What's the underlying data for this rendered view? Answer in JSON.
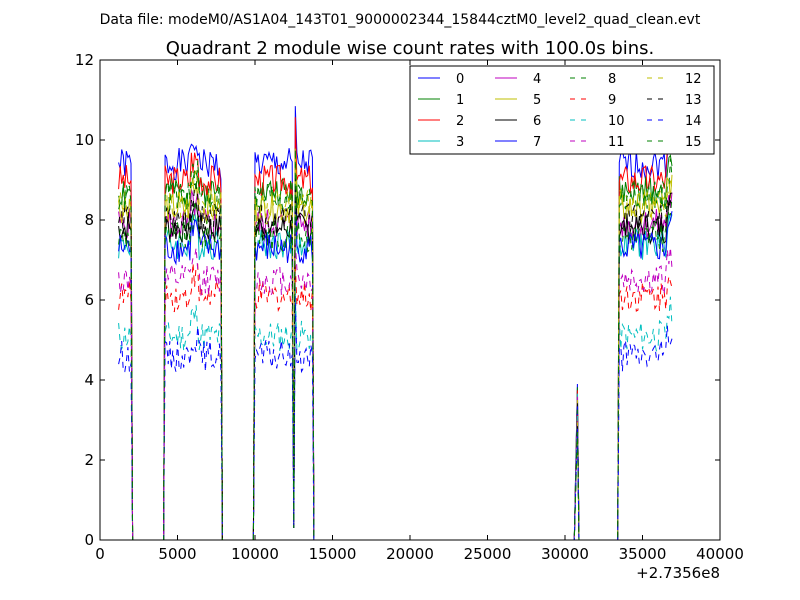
{
  "header": {
    "datafile": "Data file: modeM0/AS1A04_143T01_9000002344_15844cztM0_level2_quad_clean.evt"
  },
  "chart_data": {
    "type": "line",
    "title": "Quadrant 2 module wise count rates with 100.0s bins.",
    "xlabel": "",
    "ylabel": "",
    "x_offset_label": "+2.7356e8",
    "xlim": [
      0,
      40000
    ],
    "ylim": [
      0,
      12
    ],
    "x_ticks": [
      0,
      5000,
      10000,
      15000,
      20000,
      25000,
      30000,
      35000,
      40000
    ],
    "y_ticks": [
      0,
      2,
      4,
      6,
      8,
      10,
      12
    ],
    "grid": false,
    "legend_position": "top-right",
    "segments": [
      {
        "start": 1200,
        "end": 2000,
        "drop_to": 2100
      },
      {
        "start": 4200,
        "end": 7800,
        "drop_to": 7900
      },
      {
        "start": 10000,
        "end": 12400,
        "dip": [
          12500,
          12600
        ],
        "end2": 13700,
        "drop_to": 13800
      },
      {
        "spike_at": 30800,
        "spike_level": 3.9
      },
      {
        "start": 33500,
        "end": 36900
      }
    ],
    "series": [
      {
        "name": "0",
        "color": "#0000ff",
        "style": "solid",
        "level": 9.4
      },
      {
        "name": "1",
        "color": "#008000",
        "style": "solid",
        "level": 8.7
      },
      {
        "name": "2",
        "color": "#ff0000",
        "style": "solid",
        "level": 9.0
      },
      {
        "name": "3",
        "color": "#00bfbf",
        "style": "solid",
        "level": 7.4
      },
      {
        "name": "4",
        "color": "#bf00bf",
        "style": "solid",
        "level": 7.9
      },
      {
        "name": "5",
        "color": "#bfbf00",
        "style": "solid",
        "level": 8.3
      },
      {
        "name": "6",
        "color": "#000000",
        "style": "solid",
        "level": 7.8
      },
      {
        "name": "7",
        "color": "#0000ff",
        "style": "solid",
        "level": 7.3
      },
      {
        "name": "8",
        "color": "#008000",
        "style": "dashed",
        "level": 7.6
      },
      {
        "name": "9",
        "color": "#ff0000",
        "style": "dashed",
        "level": 6.1
      },
      {
        "name": "10",
        "color": "#00bfbf",
        "style": "dashed",
        "level": 5.1
      },
      {
        "name": "11",
        "color": "#bf00bf",
        "style": "dashed",
        "level": 6.5
      },
      {
        "name": "12",
        "color": "#bfbf00",
        "style": "dashed",
        "level": 8.4
      },
      {
        "name": "13",
        "color": "#000000",
        "style": "dashed",
        "level": 8.0
      },
      {
        "name": "14",
        "color": "#0000ff",
        "style": "dashed",
        "level": 4.6
      },
      {
        "name": "15",
        "color": "#008000",
        "style": "dashed",
        "level": 8.6
      }
    ]
  }
}
